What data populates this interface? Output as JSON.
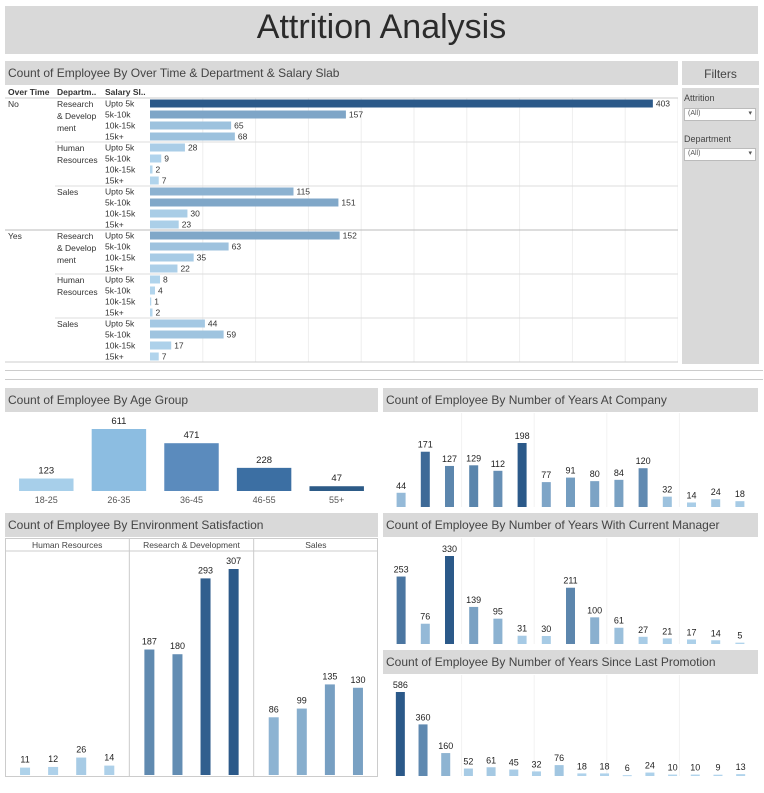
{
  "title": "Attrition Analysis",
  "filters": {
    "title": "Filters",
    "attrition": {
      "label": "Attrition",
      "value": "(All)"
    },
    "department": {
      "label": "Department",
      "value": "(All)"
    }
  },
  "chart_data": [
    {
      "type": "bar",
      "orientation": "horizontal",
      "title": "Count of Employee By Over Time & Department & Salary Slab",
      "columns": [
        "Over Time",
        "Departm..",
        "Salary Sl.."
      ],
      "groups": [
        {
          "over_time": "No",
          "department": "Research & Development",
          "dept_lines": [
            "Research",
            "& Develop",
            "ment"
          ],
          "rows": [
            {
              "slab": "Upto 5k",
              "value": 403
            },
            {
              "slab": "5k-10k",
              "value": 157
            },
            {
              "slab": "10k-15k",
              "value": 65
            },
            {
              "slab": "15k+",
              "value": 68
            }
          ]
        },
        {
          "over_time": "No",
          "department": "Human Resources",
          "dept_lines": [
            "Human",
            "Resources"
          ],
          "rows": [
            {
              "slab": "Upto 5k",
              "value": 28
            },
            {
              "slab": "5k-10k",
              "value": 9
            },
            {
              "slab": "10k-15k",
              "value": 2
            },
            {
              "slab": "15k+",
              "value": 7
            }
          ]
        },
        {
          "over_time": "No",
          "department": "Sales",
          "dept_lines": [
            "Sales"
          ],
          "rows": [
            {
              "slab": "Upto 5k",
              "value": 115
            },
            {
              "slab": "5k-10k",
              "value": 151
            },
            {
              "slab": "10k-15k",
              "value": 30
            },
            {
              "slab": "15k+",
              "value": 23
            }
          ]
        },
        {
          "over_time": "Yes",
          "department": "Research & Development",
          "dept_lines": [
            "Research",
            "& Develop",
            "ment"
          ],
          "rows": [
            {
              "slab": "Upto 5k",
              "value": 152
            },
            {
              "slab": "5k-10k",
              "value": 63
            },
            {
              "slab": "10k-15k",
              "value": 35
            },
            {
              "slab": "15k+",
              "value": 22
            }
          ]
        },
        {
          "over_time": "Yes",
          "department": "Human Resources",
          "dept_lines": [
            "Human",
            "Resources"
          ],
          "rows": [
            {
              "slab": "Upto 5k",
              "value": 8
            },
            {
              "slab": "5k-10k",
              "value": 4
            },
            {
              "slab": "10k-15k",
              "value": 1
            },
            {
              "slab": "15k+",
              "value": 2
            }
          ]
        },
        {
          "over_time": "Yes",
          "department": "Sales",
          "dept_lines": [
            "Sales"
          ],
          "rows": [
            {
              "slab": "Upto 5k",
              "value": 44
            },
            {
              "slab": "5k-10k",
              "value": 59
            },
            {
              "slab": "10k-15k",
              "value": 17
            },
            {
              "slab": "15k+",
              "value": 7
            }
          ]
        }
      ]
    },
    {
      "type": "bar",
      "title": "Count of Employee By Age Group",
      "categories": [
        "18-25",
        "26-35",
        "36-45",
        "46-55",
        "55+"
      ],
      "values": [
        123,
        611,
        471,
        228,
        47
      ]
    },
    {
      "type": "bar",
      "title": "Count of Employee By Number of Years At Company",
      "values": [
        44,
        171,
        127,
        129,
        112,
        198,
        77,
        91,
        80,
        84,
        120,
        32,
        14,
        24,
        18
      ]
    },
    {
      "type": "bar",
      "title": "Count of Employee By Environment Satisfaction",
      "panels": [
        {
          "name": "Human Resources",
          "values": [
            11,
            12,
            26,
            14
          ]
        },
        {
          "name": "Research & Development",
          "values": [
            187,
            180,
            293,
            307
          ]
        },
        {
          "name": "Sales",
          "values": [
            86,
            99,
            135,
            130
          ]
        }
      ]
    },
    {
      "type": "bar",
      "title": "Count of Employee By Number of Years With Current Manager",
      "values": [
        253,
        76,
        330,
        139,
        95,
        31,
        30,
        211,
        100,
        61,
        27,
        21,
        17,
        14,
        5
      ]
    },
    {
      "type": "bar",
      "title": "Count of Employee By Number of Years Since Last Promotion",
      "values": [
        586,
        360,
        160,
        52,
        61,
        45,
        32,
        76,
        18,
        18,
        6,
        24,
        10,
        10,
        9,
        13
      ]
    }
  ]
}
